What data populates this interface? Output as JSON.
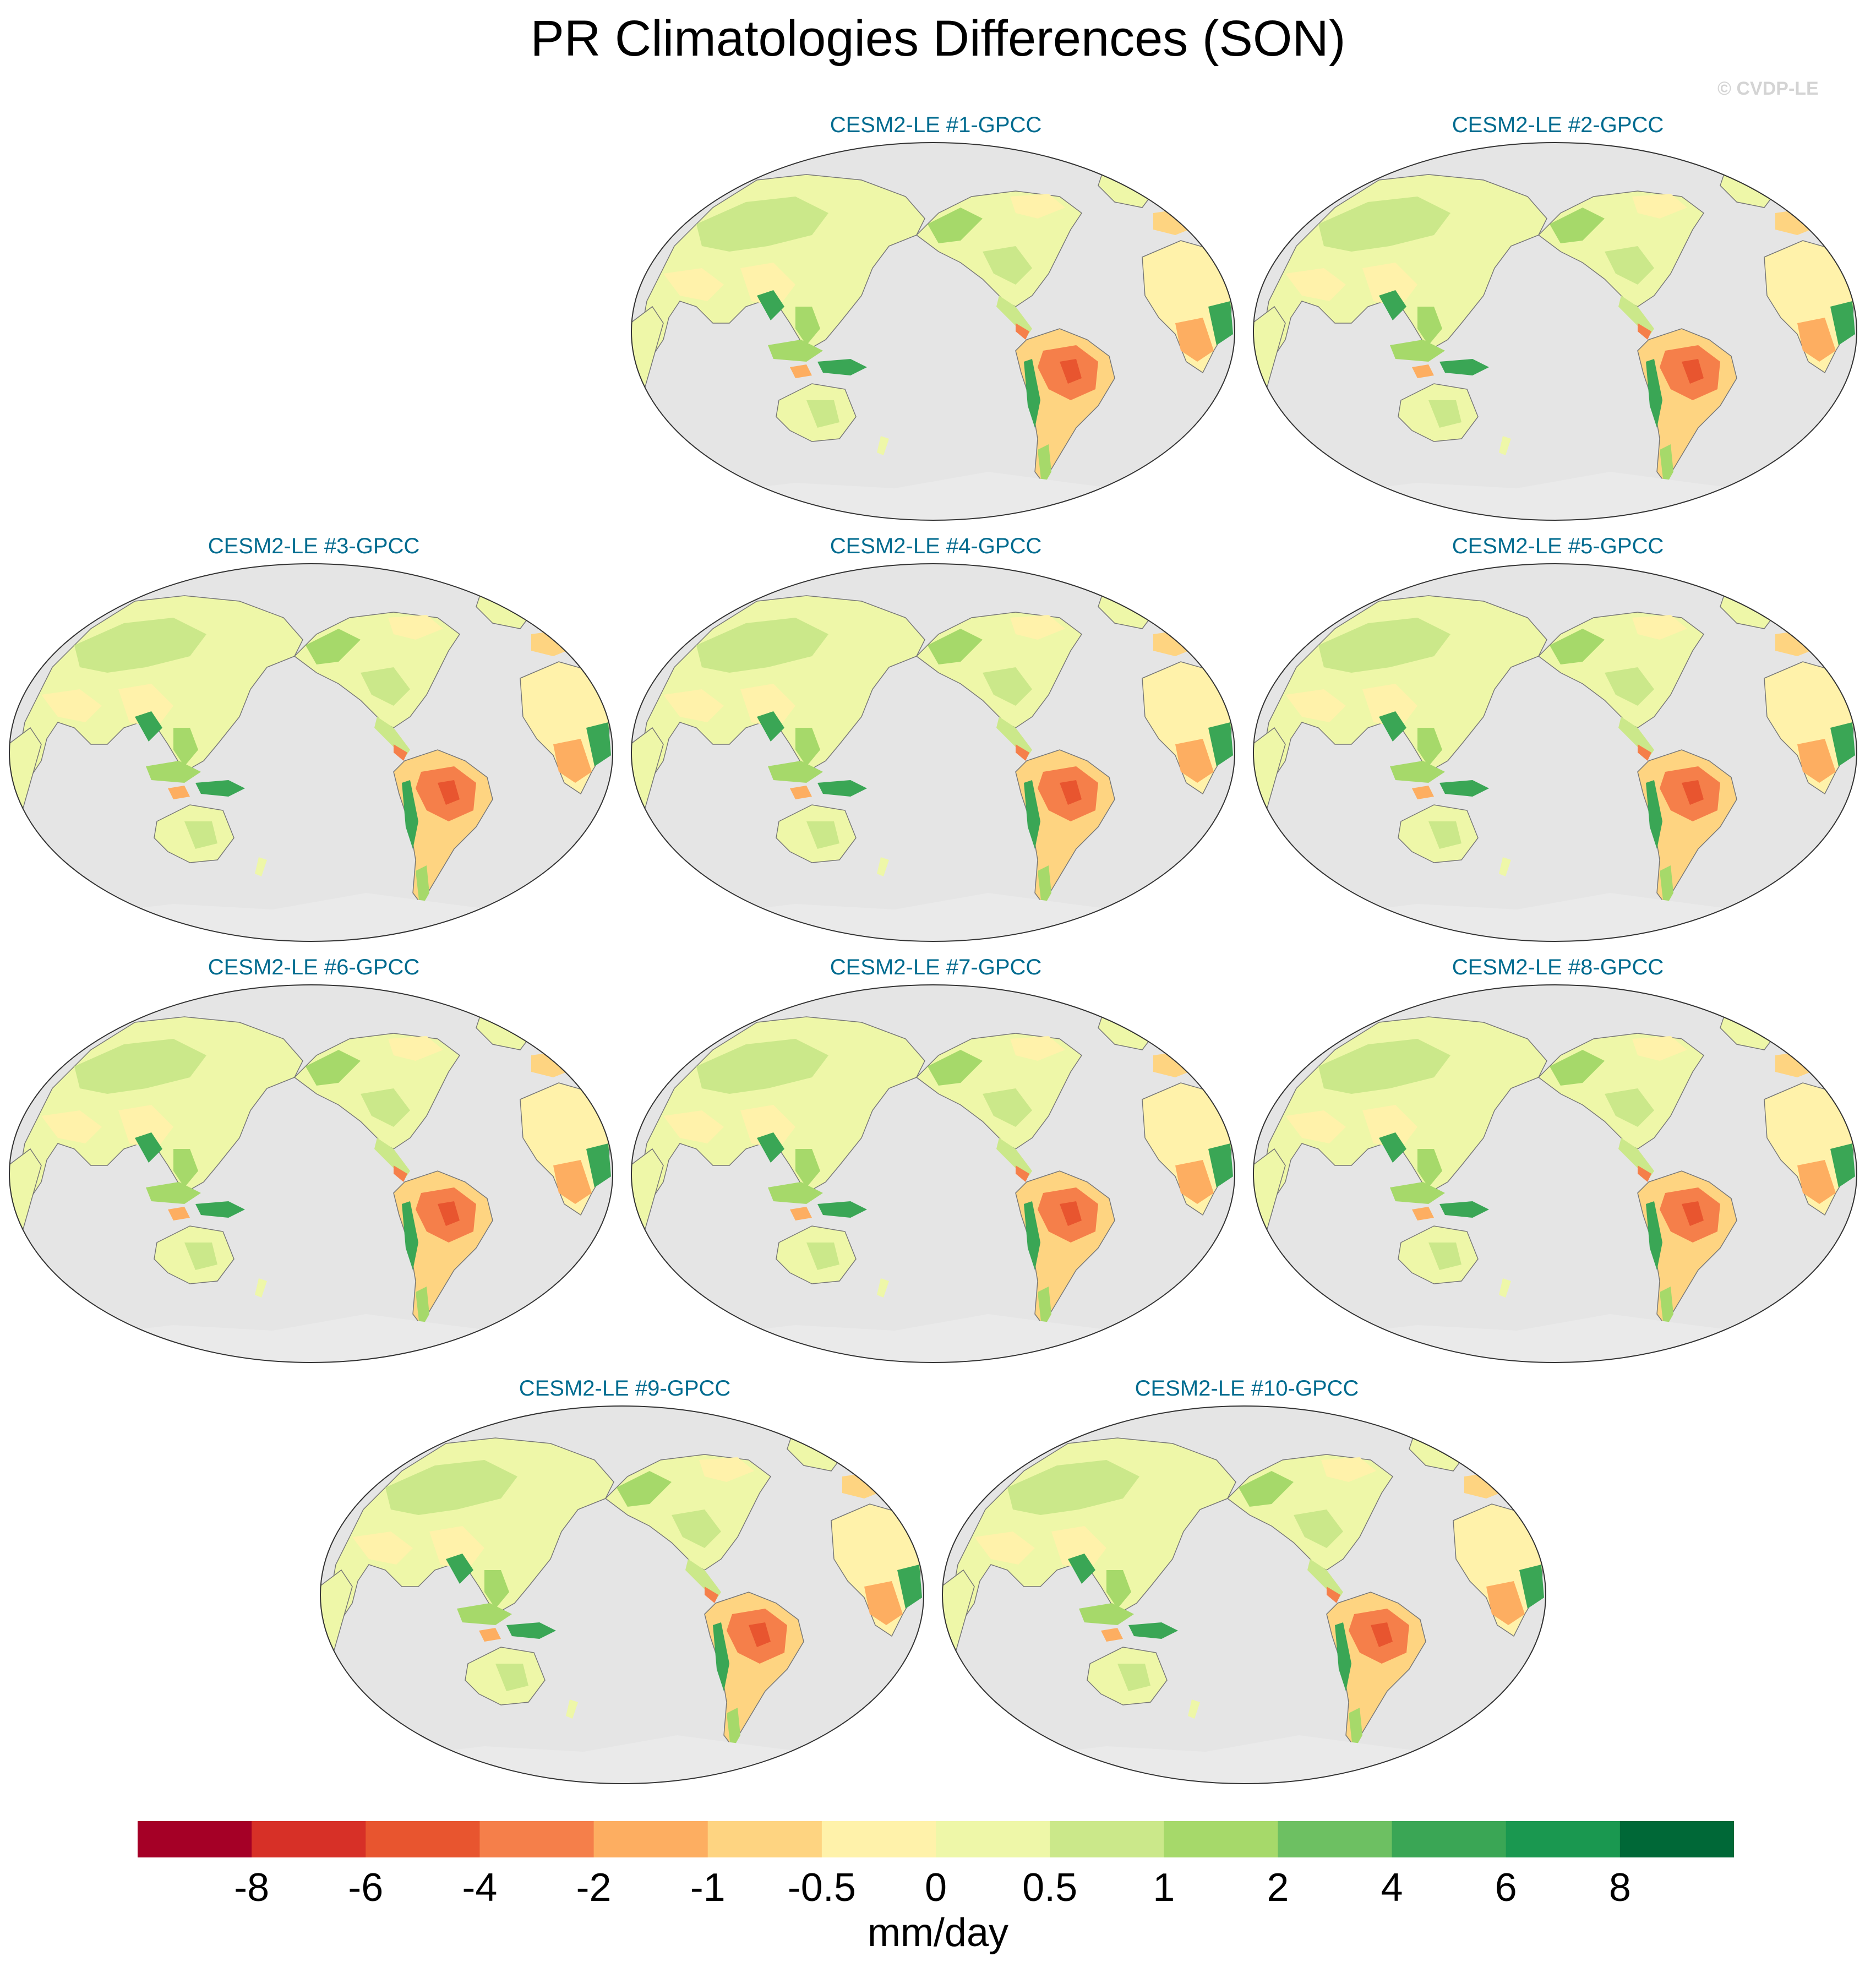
{
  "title": "PR Climatologies Differences (SON)",
  "watermark": "© CVDP-LE",
  "panels": [
    {
      "title": "CESM2-LE #1-GPCC"
    },
    {
      "title": "CESM2-LE #2-GPCC"
    },
    {
      "title": "CESM2-LE #3-GPCC"
    },
    {
      "title": "CESM2-LE #4-GPCC"
    },
    {
      "title": "CESM2-LE #5-GPCC"
    },
    {
      "title": "CESM2-LE #6-GPCC"
    },
    {
      "title": "CESM2-LE #7-GPCC"
    },
    {
      "title": "CESM2-LE #8-GPCC"
    },
    {
      "title": "CESM2-LE #9-GPCC"
    },
    {
      "title": "CESM2-LE #10-GPCC"
    }
  ],
  "colorbar": {
    "units": "mm/day",
    "ticks": [
      "-8",
      "-6",
      "-4",
      "-2",
      "-1",
      "-0.5",
      "0",
      "0.5",
      "1",
      "2",
      "4",
      "6",
      "8"
    ],
    "colors": [
      "#a50026",
      "#d73027",
      "#e8552f",
      "#f57f4a",
      "#fdae61",
      "#fed481",
      "#fff2aa",
      "#eef7a8",
      "#cbe88a",
      "#a6d96a",
      "#6dc062",
      "#3aa655",
      "#1a9850",
      "#006837"
    ]
  },
  "colors": {
    "ocean": "#e5e5e5",
    "coast": "#777777",
    "title_accent": "#006b8f"
  }
}
